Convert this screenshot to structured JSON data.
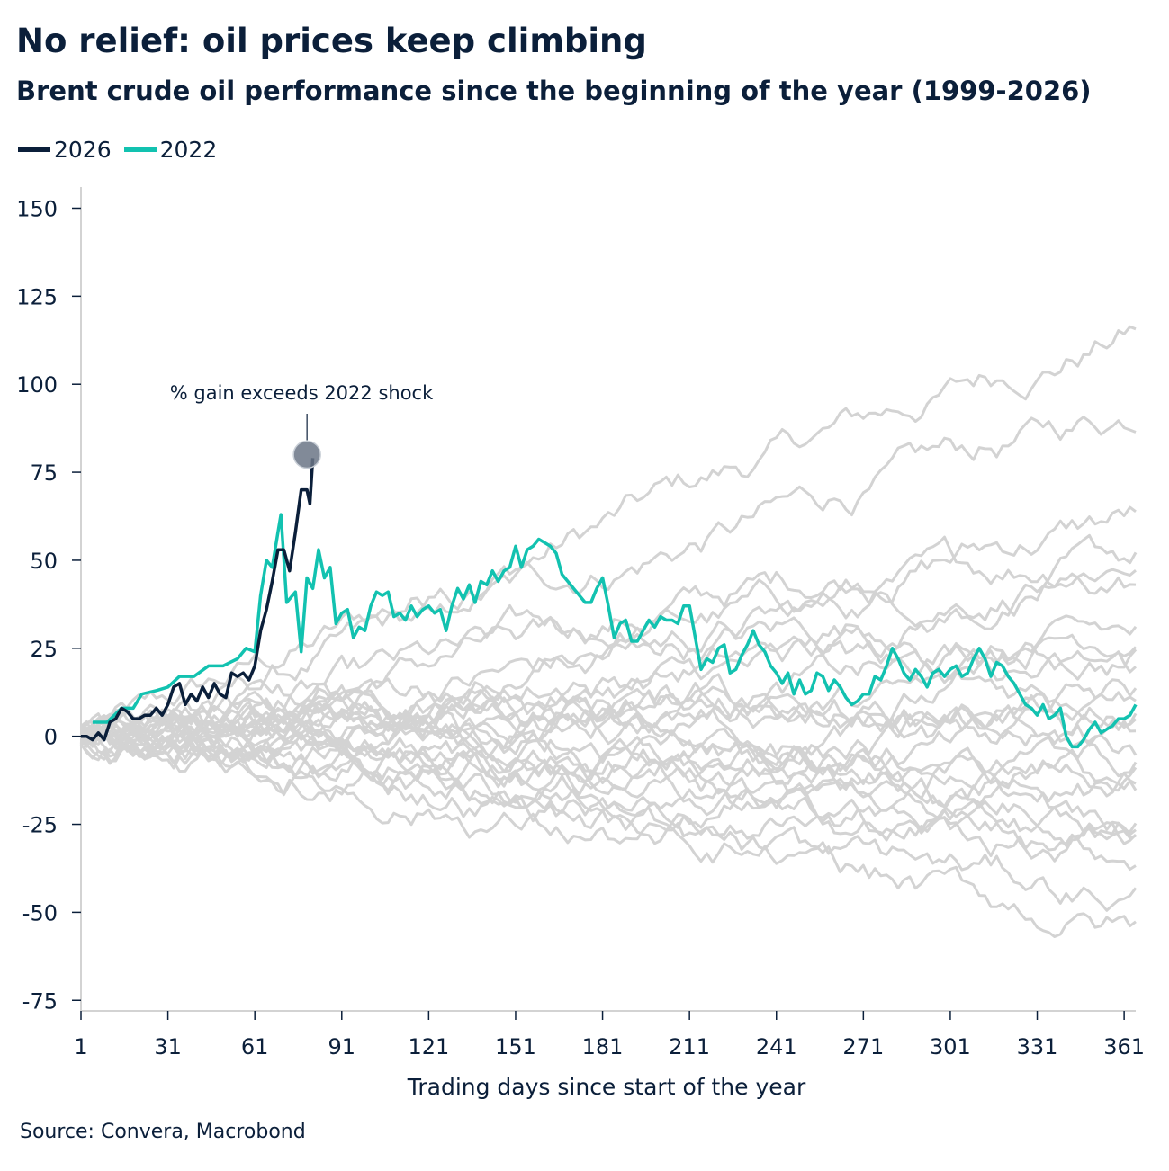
{
  "header": {
    "title": "No relief: oil prices keep climbing",
    "subtitle": "Brent crude oil performance since the beginning of the year (1999-2026)"
  },
  "footer": {
    "source": "Source: Convera, Macrobond"
  },
  "colors": {
    "y2026": "#0b1f3a",
    "y2022": "#12c2b0",
    "other_years": "#d3d3d3",
    "marker": "#6b7686"
  },
  "chart_data": {
    "type": "line",
    "title": "No relief: oil prices keep climbing",
    "xlabel": "Trading days since start of the year",
    "ylabel": "",
    "xlim": [
      1,
      365
    ],
    "ylim": [
      -78,
      156
    ],
    "x_ticks": [
      1,
      31,
      61,
      91,
      121,
      151,
      181,
      211,
      241,
      271,
      301,
      331,
      361
    ],
    "y_ticks": [
      -75,
      -50,
      -25,
      0,
      25,
      50,
      75,
      100,
      125,
      150
    ],
    "legend": {
      "placement": "top-left",
      "entries": [
        "2026",
        "2022"
      ]
    },
    "annotation": {
      "text": "% gain exceeds 2022 shock",
      "x": 79,
      "y": 80
    },
    "series": [
      {
        "name": "2026",
        "color": "#0b1f3a",
        "points": [
          [
            1,
            0
          ],
          [
            3,
            0
          ],
          [
            5,
            -1
          ],
          [
            7,
            1
          ],
          [
            9,
            -1
          ],
          [
            11,
            4
          ],
          [
            13,
            5
          ],
          [
            15,
            8
          ],
          [
            17,
            7
          ],
          [
            19,
            5
          ],
          [
            21,
            5
          ],
          [
            23,
            6
          ],
          [
            25,
            6
          ],
          [
            27,
            8
          ],
          [
            29,
            6
          ],
          [
            31,
            9
          ],
          [
            33,
            14
          ],
          [
            35,
            15
          ],
          [
            37,
            9
          ],
          [
            39,
            12
          ],
          [
            41,
            10
          ],
          [
            43,
            14
          ],
          [
            45,
            11
          ],
          [
            47,
            15
          ],
          [
            49,
            12
          ],
          [
            51,
            11
          ],
          [
            53,
            18
          ],
          [
            55,
            17
          ],
          [
            57,
            18
          ],
          [
            59,
            16
          ],
          [
            61,
            20
          ],
          [
            63,
            30
          ],
          [
            65,
            36
          ],
          [
            67,
            44
          ],
          [
            69,
            53
          ],
          [
            71,
            53
          ],
          [
            73,
            47
          ],
          [
            75,
            58
          ],
          [
            77,
            70
          ],
          [
            79,
            70
          ],
          [
            80,
            66
          ],
          [
            81,
            79
          ]
        ]
      },
      {
        "name": "2022",
        "color": "#12c2b0",
        "points": [
          [
            5,
            4
          ],
          [
            10,
            4
          ],
          [
            15,
            8
          ],
          [
            19,
            8
          ],
          [
            22,
            12
          ],
          [
            27,
            13
          ],
          [
            31,
            14
          ],
          [
            35,
            17
          ],
          [
            40,
            17
          ],
          [
            45,
            20
          ],
          [
            50,
            20
          ],
          [
            55,
            22
          ],
          [
            58,
            25
          ],
          [
            61,
            24
          ],
          [
            63,
            40
          ],
          [
            65,
            50
          ],
          [
            67,
            48
          ],
          [
            69,
            58
          ],
          [
            70,
            63
          ],
          [
            72,
            38
          ],
          [
            75,
            41
          ],
          [
            77,
            24
          ],
          [
            79,
            45
          ],
          [
            81,
            42
          ],
          [
            83,
            53
          ],
          [
            85,
            45
          ],
          [
            87,
            48
          ],
          [
            89,
            32
          ],
          [
            91,
            35
          ],
          [
            93,
            36
          ],
          [
            95,
            28
          ],
          [
            97,
            31
          ],
          [
            99,
            30
          ],
          [
            101,
            37
          ],
          [
            103,
            41
          ],
          [
            105,
            40
          ],
          [
            107,
            41
          ],
          [
            109,
            34
          ],
          [
            111,
            35
          ],
          [
            113,
            33
          ],
          [
            115,
            37
          ],
          [
            117,
            34
          ],
          [
            119,
            36
          ],
          [
            121,
            37
          ],
          [
            123,
            35
          ],
          [
            125,
            36
          ],
          [
            127,
            30
          ],
          [
            129,
            37
          ],
          [
            131,
            42
          ],
          [
            133,
            39
          ],
          [
            135,
            43
          ],
          [
            137,
            38
          ],
          [
            139,
            44
          ],
          [
            141,
            43
          ],
          [
            143,
            47
          ],
          [
            145,
            44
          ],
          [
            147,
            47
          ],
          [
            149,
            48
          ],
          [
            151,
            54
          ],
          [
            153,
            48
          ],
          [
            155,
            53
          ],
          [
            157,
            54
          ],
          [
            159,
            56
          ],
          [
            161,
            55
          ],
          [
            163,
            54
          ],
          [
            165,
            52
          ],
          [
            167,
            46
          ],
          [
            169,
            44
          ],
          [
            171,
            42
          ],
          [
            173,
            40
          ],
          [
            175,
            38
          ],
          [
            177,
            38
          ],
          [
            179,
            42
          ],
          [
            181,
            45
          ],
          [
            183,
            37
          ],
          [
            185,
            28
          ],
          [
            187,
            32
          ],
          [
            189,
            33
          ],
          [
            191,
            27
          ],
          [
            193,
            27
          ],
          [
            195,
            30
          ],
          [
            197,
            33
          ],
          [
            199,
            31
          ],
          [
            201,
            34
          ],
          [
            203,
            33
          ],
          [
            205,
            33
          ],
          [
            207,
            32
          ],
          [
            209,
            37
          ],
          [
            211,
            37
          ],
          [
            213,
            28
          ],
          [
            215,
            19
          ],
          [
            217,
            22
          ],
          [
            219,
            21
          ],
          [
            221,
            25
          ],
          [
            223,
            26
          ],
          [
            225,
            18
          ],
          [
            227,
            19
          ],
          [
            229,
            23
          ],
          [
            231,
            26
          ],
          [
            233,
            30
          ],
          [
            235,
            26
          ],
          [
            237,
            24
          ],
          [
            239,
            20
          ],
          [
            241,
            18
          ],
          [
            243,
            15
          ],
          [
            245,
            18
          ],
          [
            247,
            12
          ],
          [
            249,
            16
          ],
          [
            251,
            12
          ],
          [
            253,
            13
          ],
          [
            255,
            18
          ],
          [
            257,
            17
          ],
          [
            259,
            13
          ],
          [
            261,
            16
          ],
          [
            263,
            14
          ],
          [
            265,
            11
          ],
          [
            267,
            9
          ],
          [
            269,
            10
          ],
          [
            271,
            12
          ],
          [
            273,
            12
          ],
          [
            275,
            17
          ],
          [
            277,
            16
          ],
          [
            279,
            20
          ],
          [
            281,
            25
          ],
          [
            283,
            22
          ],
          [
            285,
            18
          ],
          [
            287,
            16
          ],
          [
            289,
            19
          ],
          [
            291,
            17
          ],
          [
            293,
            14
          ],
          [
            295,
            18
          ],
          [
            297,
            19
          ],
          [
            299,
            17
          ],
          [
            301,
            19
          ],
          [
            303,
            20
          ],
          [
            305,
            17
          ],
          [
            307,
            18
          ],
          [
            309,
            22
          ],
          [
            311,
            25
          ],
          [
            313,
            22
          ],
          [
            315,
            17
          ],
          [
            317,
            21
          ],
          [
            319,
            20
          ],
          [
            321,
            17
          ],
          [
            323,
            15
          ],
          [
            325,
            12
          ],
          [
            327,
            9
          ],
          [
            329,
            8
          ],
          [
            331,
            6
          ],
          [
            333,
            9
          ],
          [
            335,
            5
          ],
          [
            337,
            6
          ],
          [
            339,
            8
          ],
          [
            341,
            0
          ],
          [
            343,
            -3
          ],
          [
            345,
            -3
          ],
          [
            347,
            -1
          ],
          [
            349,
            2
          ],
          [
            351,
            4
          ],
          [
            353,
            1
          ],
          [
            355,
            2
          ],
          [
            357,
            3
          ],
          [
            359,
            5
          ],
          [
            361,
            5
          ],
          [
            363,
            6
          ],
          [
            365,
            9
          ]
        ]
      }
    ]
  }
}
